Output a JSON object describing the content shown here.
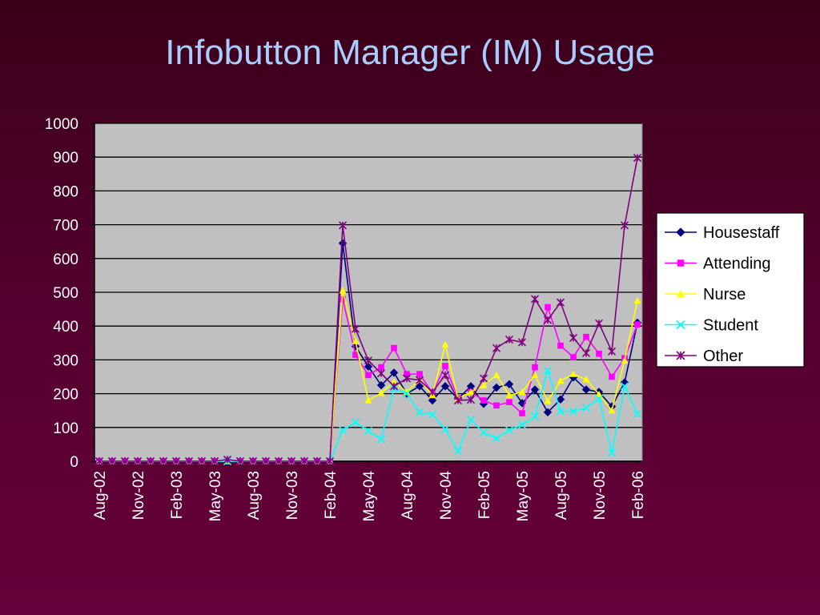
{
  "slide": {
    "title": "Infobutton Manager (IM) Usage"
  },
  "chart_data": {
    "type": "line",
    "title": "",
    "xlabel": "",
    "ylabel": "",
    "ylim": [
      0,
      1000
    ],
    "yticks": [
      0,
      100,
      200,
      300,
      400,
      500,
      600,
      700,
      800,
      900,
      1000
    ],
    "grid": "horizontal",
    "legend_position": "right",
    "plot_background": "#c0c0c0",
    "categories": [
      "Aug-02",
      "Sep-02",
      "Oct-02",
      "Nov-02",
      "Dec-02",
      "Jan-03",
      "Feb-03",
      "Mar-03",
      "Apr-03",
      "May-03",
      "Jun-03",
      "Jul-03",
      "Aug-03",
      "Sep-03",
      "Oct-03",
      "Nov-03",
      "Dec-03",
      "Jan-04",
      "Feb-04",
      "Mar-04",
      "Apr-04",
      "May-04",
      "Jun-04",
      "Jul-04",
      "Aug-04",
      "Sep-04",
      "Oct-04",
      "Nov-04",
      "Dec-04",
      "Jan-05",
      "Feb-05",
      "Mar-05",
      "Apr-05",
      "May-05",
      "Jun-05",
      "Jul-05",
      "Aug-05",
      "Sep-05",
      "Oct-05",
      "Nov-05",
      "Dec-05",
      "Jan-06",
      "Feb-06"
    ],
    "tick_labels": [
      "Aug-02",
      "Nov-02",
      "Feb-03",
      "May-03",
      "Aug-03",
      "Nov-03",
      "Feb-04",
      "May-04",
      "Aug-04",
      "Nov-04",
      "Feb-05",
      "May-05",
      "Aug-05",
      "Nov-05",
      "Feb-06"
    ],
    "series": [
      {
        "name": "Housestaff",
        "color": "#000080",
        "marker": "diamond",
        "values": [
          0,
          0,
          0,
          0,
          0,
          0,
          0,
          0,
          0,
          0,
          0,
          0,
          0,
          0,
          0,
          0,
          0,
          0,
          0,
          645,
          340,
          280,
          225,
          262,
          200,
          222,
          180,
          222,
          185,
          222,
          170,
          218,
          228,
          172,
          212,
          145,
          183,
          248,
          212,
          205,
          162,
          233,
          410
        ]
      },
      {
        "name": "Attending",
        "color": "#ff00ff",
        "marker": "square",
        "values": [
          0,
          0,
          0,
          0,
          0,
          0,
          0,
          0,
          0,
          0,
          0,
          0,
          0,
          0,
          0,
          0,
          0,
          0,
          0,
          480,
          315,
          255,
          278,
          335,
          258,
          258,
          202,
          282,
          185,
          205,
          180,
          165,
          175,
          142,
          278,
          456,
          342,
          308,
          368,
          318,
          250,
          305,
          405
        ]
      },
      {
        "name": "Nurse",
        "color": "#ffff00",
        "marker": "triangle",
        "values": [
          0,
          0,
          0,
          0,
          0,
          0,
          0,
          0,
          0,
          0,
          0,
          0,
          0,
          0,
          0,
          0,
          0,
          0,
          0,
          505,
          355,
          180,
          202,
          235,
          205,
          242,
          195,
          345,
          185,
          205,
          225,
          255,
          195,
          205,
          255,
          178,
          238,
          258,
          242,
          198,
          150,
          298,
          475
        ]
      },
      {
        "name": "Student",
        "color": "#00ffff",
        "marker": "x",
        "values": [
          0,
          0,
          0,
          0,
          0,
          0,
          0,
          0,
          0,
          0,
          0,
          0,
          0,
          0,
          0,
          0,
          0,
          0,
          0,
          92,
          115,
          90,
          65,
          215,
          200,
          145,
          138,
          95,
          30,
          123,
          85,
          68,
          92,
          108,
          133,
          268,
          148,
          148,
          158,
          185,
          25,
          222,
          140
        ]
      },
      {
        "name": "Other",
        "color": "#800080",
        "marker": "star",
        "values": [
          0,
          0,
          0,
          0,
          0,
          0,
          0,
          0,
          0,
          0,
          5,
          0,
          0,
          0,
          0,
          0,
          0,
          0,
          0,
          698,
          392,
          298,
          260,
          222,
          245,
          240,
          205,
          255,
          180,
          182,
          245,
          335,
          360,
          352,
          480,
          418,
          470,
          365,
          320,
          408,
          325,
          698,
          898
        ]
      }
    ]
  }
}
